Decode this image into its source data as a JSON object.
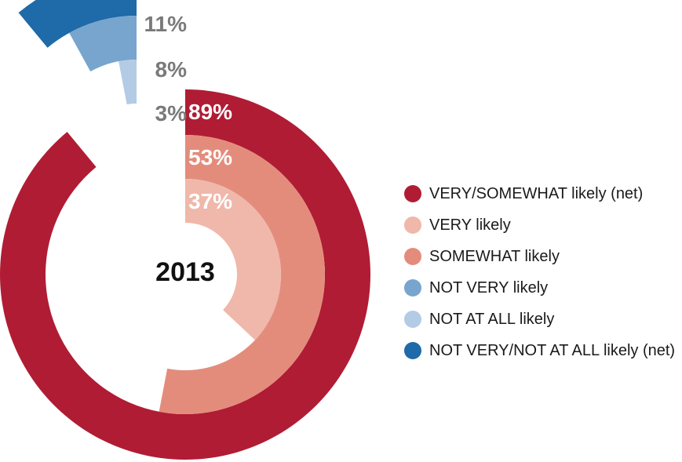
{
  "chart_data": {
    "type": "radial-bar",
    "center_label": "2013",
    "series": [
      {
        "name": "VERY/SOMEWHAT likely (net)",
        "value": 89,
        "label": "89%",
        "color": "#b01c34",
        "group": "likely"
      },
      {
        "name": "SOMEWHAT likely",
        "value": 53,
        "label": "53%",
        "color": "#e48c7c",
        "group": "likely"
      },
      {
        "name": "VERY likely",
        "value": 37,
        "label": "37%",
        "color": "#efb8aa",
        "group": "likely"
      },
      {
        "name": "NOT VERY/NOT AT ALL likely (net)",
        "value": 11,
        "label": "11%",
        "color": "#1f6aa8",
        "group": "not_likely"
      },
      {
        "name": "NOT VERY likely",
        "value": 8,
        "label": "8%",
        "color": "#77a5ce",
        "group": "not_likely"
      },
      {
        "name": "NOT AT ALL likely",
        "value": 3,
        "label": "3%",
        "color": "#b3cbe4",
        "group": "not_likely"
      }
    ],
    "legend": {
      "placement": "right",
      "items": [
        {
          "label": "VERY/SOMEWHAT likely (net)",
          "color": "#b01c34"
        },
        {
          "label": "VERY likely",
          "color": "#efb8aa"
        },
        {
          "label": "SOMEWHAT likely",
          "color": "#e48c7c"
        },
        {
          "label": "NOT VERY likely",
          "color": "#77a5ce"
        },
        {
          "label": "NOT AT ALL likely",
          "color": "#b3cbe4"
        },
        {
          "label": "NOT VERY/NOT AT ALL likely (net)",
          "color": "#1f6aa8"
        }
      ]
    }
  }
}
